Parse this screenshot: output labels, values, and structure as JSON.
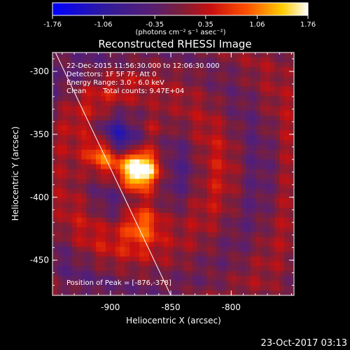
{
  "colorbar": {
    "ticks": [
      "-1.76",
      "-1.06",
      "-0.35",
      "0.35",
      "1.06",
      "1.76"
    ],
    "range": [
      -1.76,
      1.76
    ],
    "units_label": "(photons cm⁻² s⁻¹ asec⁻²)"
  },
  "chart_data": {
    "type": "heatmap",
    "title": "Reconstructed RHESSI Image",
    "xlabel": "Heliocentric X (arcsec)",
    "ylabel": "Heliocentric Y (arcsec)",
    "xlim": [
      -948,
      -748
    ],
    "ylim": [
      -478,
      -285
    ],
    "x_ticks": [
      "-900",
      "-850",
      "-800"
    ],
    "x_tick_values": [
      -900,
      -850,
      -800
    ],
    "y_ticks": [
      "-300",
      "-350",
      "-400",
      "-450"
    ],
    "y_tick_values": [
      -300,
      -350,
      -400,
      -450
    ],
    "grid": false,
    "colormap": "blue-purple-red-yellow-white",
    "sources": [
      {
        "x": -876,
        "y": -378,
        "amplitude": 1.76,
        "width": 11
      },
      {
        "x": -905,
        "y": -365,
        "amplitude": 1.55,
        "width": 11
      },
      {
        "x": -875,
        "y": -420,
        "amplitude": 1.2,
        "width": 12
      },
      {
        "x": -885,
        "y": -345,
        "amplitude": 0.6,
        "width": 8
      },
      {
        "x": -865,
        "y": -345,
        "amplitude": 0.5,
        "width": 8
      },
      {
        "x": -892,
        "y": -353,
        "amplitude": -1.3,
        "width": 11
      }
    ],
    "limb_line": [
      [
        -948,
        -280
      ],
      [
        -850,
        -478
      ]
    ],
    "annotations": {
      "time_range": "22-Dec-2015 11:56:30.000 to 12:06:30.000",
      "detectors": "Detectors: 1F 5F 7F, Att 0",
      "energy": "Energy Range: 3.0 - 6.0 keV",
      "method": "Clean",
      "counts": "Total counts: 9.47E+04",
      "peak": "Position of Peak = [-876,-378]"
    }
  },
  "footer": {
    "date": "23-Oct-2017 03:13"
  }
}
